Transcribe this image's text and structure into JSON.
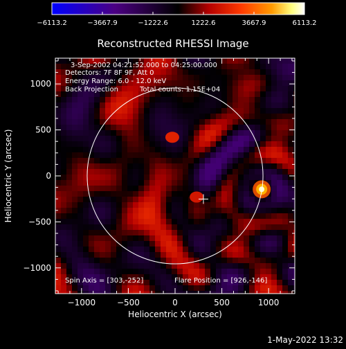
{
  "colorbar": {
    "min": -6113.2,
    "max": 6113.2,
    "tick_labels": [
      "−6113.2",
      "−3667.9",
      "−1222.6",
      "1222.6",
      "3667.9",
      "6113.2"
    ],
    "tick_values": [
      -6113.2,
      -3667.9,
      -1222.6,
      1222.6,
      3667.9,
      6113.2
    ]
  },
  "header": {
    "time_range": "3-Sep-2002 04:21:52.000 to 04:25:00.000",
    "detectors": "Detectors: 7F 8F 9F, Att 0",
    "energy": "Energy Range: 6.0 - 12.0 keV",
    "method": "Back Projection",
    "counts": "Total counts: 1.15E+04"
  },
  "footer": {
    "spin_axis": "Spin Axis = [303,-252]",
    "flare_position": "Flare Position = [926,-146]"
  },
  "plot_date": "1-May-2022 13:32",
  "colors": {
    "background": "#000000",
    "axes": "#ffffff",
    "colormap": [
      "#0000ff",
      "#4b0082",
      "#000000",
      "#b40000",
      "#ff3a00",
      "#ff9a00",
      "#ffff80",
      "#ffffff"
    ]
  },
  "chart_data": {
    "type": "heatmap",
    "title": "Reconstructed RHESSI Image",
    "xlabel": "Heliocentric X (arcsec)",
    "ylabel": "Heliocentric Y (arcsec)",
    "xlim": [
      -1280,
      1280
    ],
    "ylim": [
      -1280,
      1280
    ],
    "x_ticks": [
      -1000,
      -500,
      0,
      500,
      1000
    ],
    "y_ticks": [
      -1000,
      -500,
      0,
      500,
      1000
    ],
    "grid": false,
    "solar_limb_radius_arcsec": 940,
    "spin_axis": [
      303,
      -252
    ],
    "flare_position": [
      926,
      -146
    ],
    "flare_peak": 6113.2,
    "secondary_sources": [
      {
        "x": -30,
        "y": 420,
        "value": 2400
      },
      {
        "x": 230,
        "y": -230,
        "value": 2100
      }
    ]
  }
}
